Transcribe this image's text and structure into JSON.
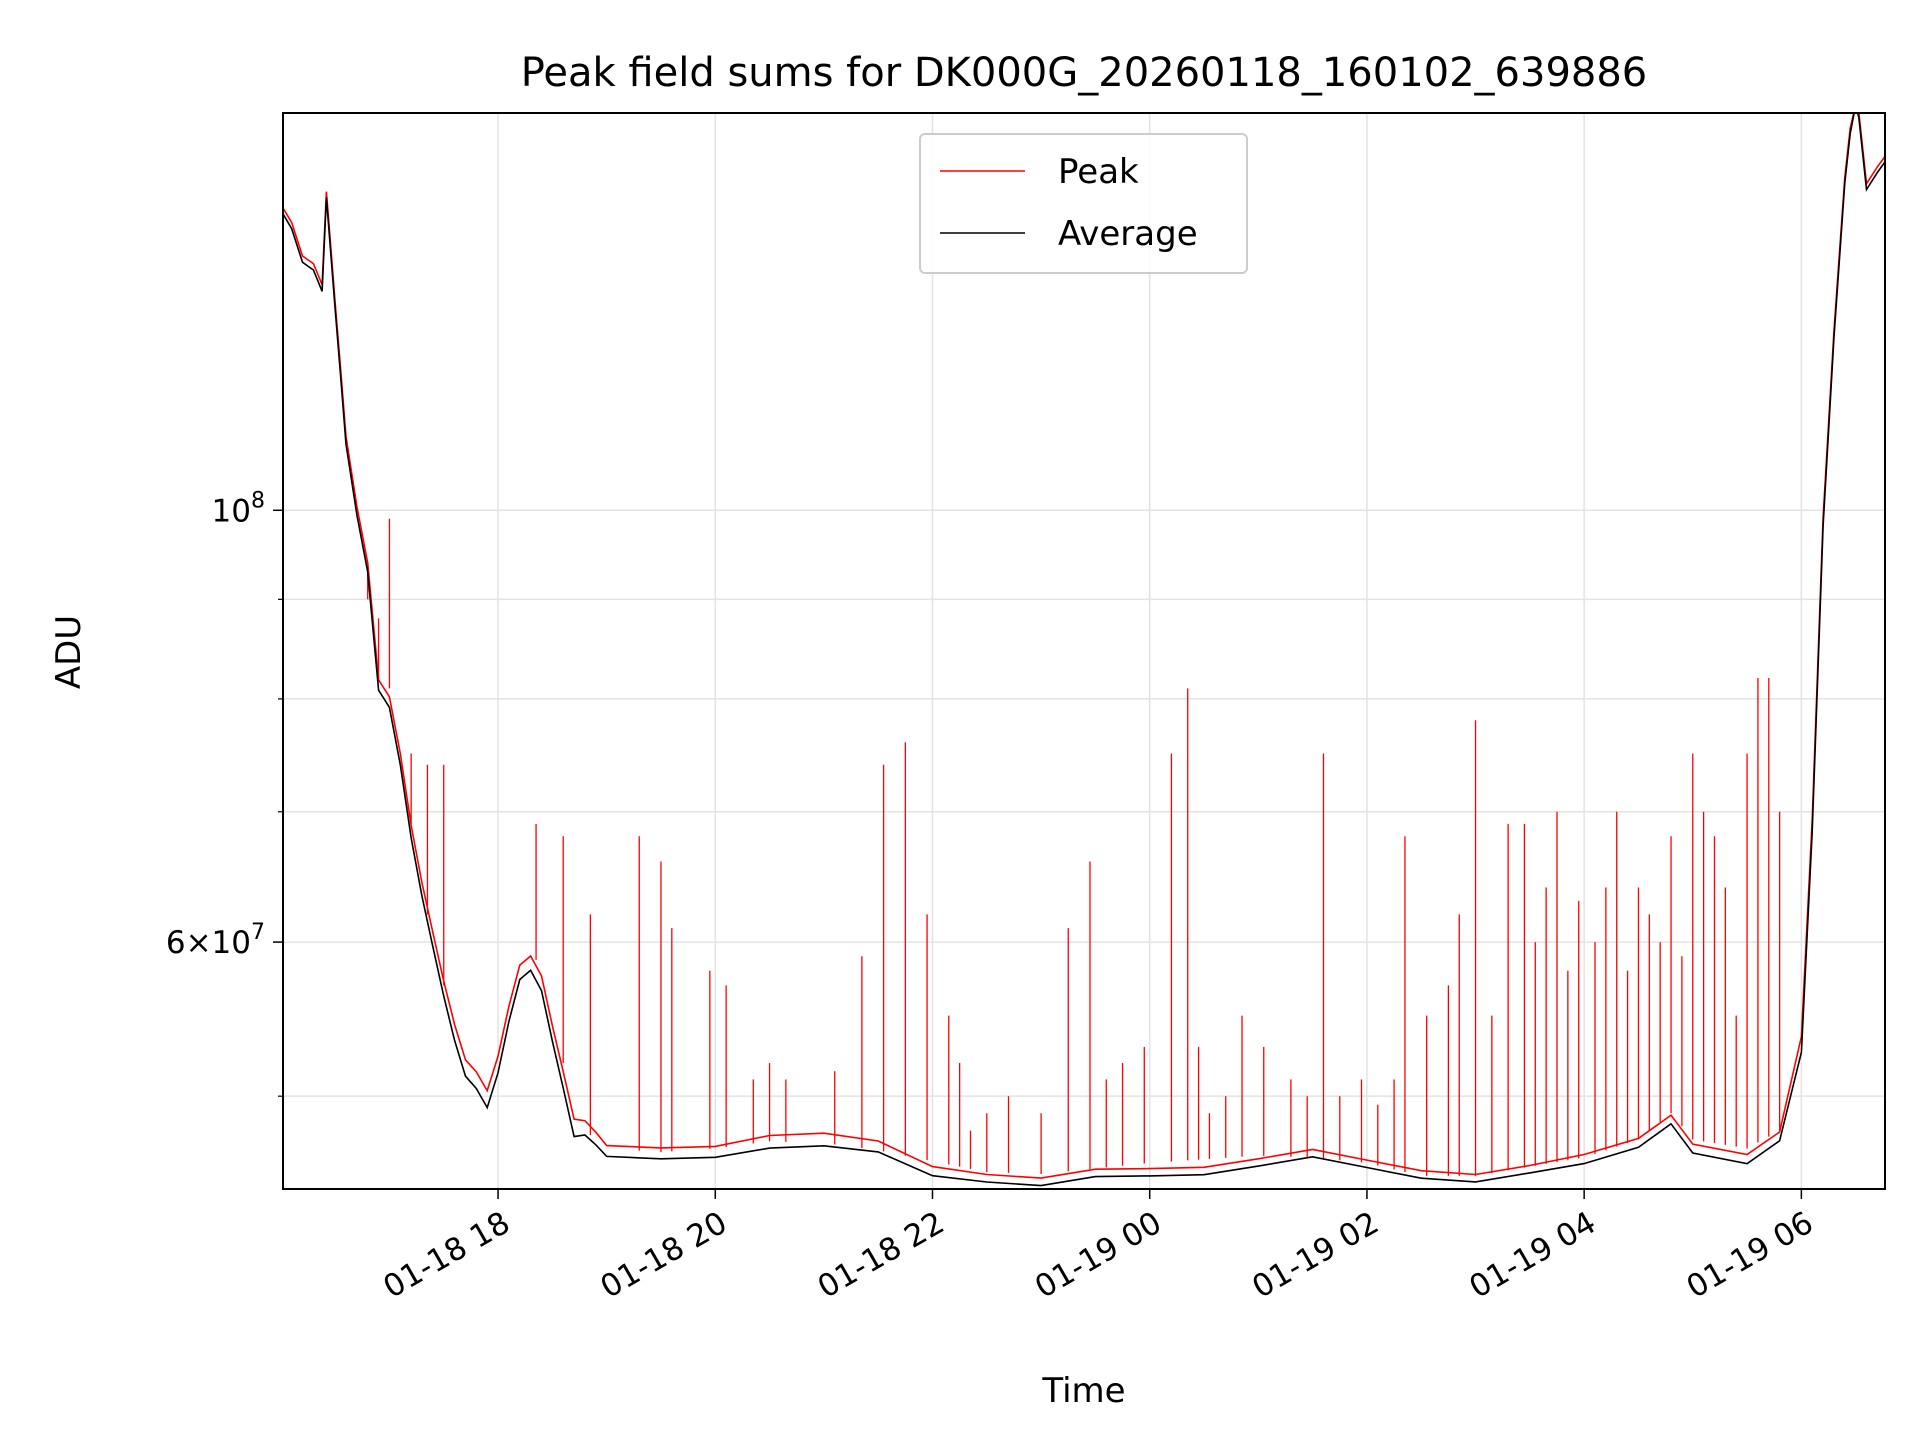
{
  "chart_data": {
    "type": "line",
    "title": "Peak field sums for DK000G_20260118_160102_639886",
    "xlabel": "Time",
    "ylabel": "ADU",
    "yscale": "log",
    "ylim": [
      44800000,
      160000000
    ],
    "x_unit": "hours since 01-18 16:00",
    "xlim": [
      16.02,
      30.77
    ],
    "x_ticks": [
      {
        "value": 18,
        "label": "01-18 18"
      },
      {
        "value": 20,
        "label": "01-18 20"
      },
      {
        "value": 22,
        "label": "01-18 22"
      },
      {
        "value": 24,
        "label": "01-19 00"
      },
      {
        "value": 26,
        "label": "01-19 02"
      },
      {
        "value": 28,
        "label": "01-19 04"
      },
      {
        "value": 30,
        "label": "01-19 06"
      }
    ],
    "y_ticks": [
      {
        "value": 100000000,
        "label": "10^8",
        "mantissa": "10",
        "exp": "8"
      },
      {
        "value": 60000000,
        "label": "6×10^7",
        "mantissa": "6×10",
        "exp": "7"
      }
    ],
    "y_minor_grid": [
      50000000,
      70000000,
      80000000,
      90000000
    ],
    "grid": true,
    "legend": {
      "location": "upper-center",
      "entries": [
        "Peak",
        "Average"
      ]
    },
    "series": [
      {
        "name": "Peak",
        "color": "#ff0000",
        "x": [
          16.02,
          16.1,
          16.2,
          16.3,
          16.38,
          16.42,
          16.5,
          16.55,
          16.6,
          16.7,
          16.8,
          16.9,
          17.0,
          17.1,
          17.2,
          17.3,
          17.4,
          17.5,
          17.6,
          17.7,
          17.8,
          17.9,
          18.0,
          18.1,
          18.2,
          18.3,
          18.4,
          18.5,
          18.6,
          18.7,
          18.8,
          18.9,
          19.0,
          19.5,
          20.0,
          20.5,
          21.0,
          21.5,
          22.0,
          22.5,
          23.0,
          23.5,
          24.0,
          24.5,
          25.0,
          25.5,
          26.0,
          26.5,
          27.0,
          27.5,
          28.0,
          28.5,
          28.8,
          29.0,
          29.5,
          29.8,
          30.0,
          30.1,
          30.2,
          30.3,
          30.4,
          30.45,
          30.5,
          30.53,
          30.6,
          30.7,
          30.77
        ],
        "y": [
          143000000,
          139000000,
          135000000,
          133000000,
          130000000,
          145000000,
          127000000,
          118000000,
          110000000,
          101000000,
          94000000,
          82000000,
          81000000,
          75000000,
          69000000,
          64000000,
          60000000,
          57000000,
          54000000,
          52000000,
          51000000,
          50000000,
          52000000,
          56000000,
          59000000,
          59500000,
          58000000,
          55000000,
          52000000,
          49000000,
          48000000,
          47500000,
          47000000,
          46800000,
          47000000,
          47400000,
          47300000,
          46900000,
          46300000,
          45700000,
          45600000,
          45900000,
          46200000,
          46400000,
          46600000,
          46500000,
          46200000,
          45500000,
          45500000,
          46000000,
          46500000,
          47500000,
          49000000,
          47500000,
          47000000,
          48000000,
          54000000,
          70000000,
          100000000,
          125000000,
          148000000,
          157000000,
          160000000,
          160000000,
          147000000,
          150000000,
          152000000
        ]
      },
      {
        "name": "Average",
        "color": "#000000",
        "x": [
          16.02,
          16.1,
          16.2,
          16.3,
          16.38,
          16.42,
          16.5,
          16.55,
          16.6,
          16.7,
          16.8,
          16.9,
          17.0,
          17.1,
          17.2,
          17.3,
          17.4,
          17.5,
          17.6,
          17.7,
          17.8,
          17.9,
          18.0,
          18.1,
          18.2,
          18.3,
          18.4,
          18.5,
          18.6,
          18.7,
          18.8,
          18.9,
          19.0,
          19.5,
          20.0,
          20.5,
          21.0,
          21.5,
          22.0,
          22.5,
          23.0,
          23.5,
          24.0,
          24.5,
          25.0,
          25.5,
          26.0,
          26.5,
          27.0,
          27.5,
          28.0,
          28.5,
          28.8,
          29.0,
          29.5,
          29.8,
          30.0,
          30.1,
          30.2,
          30.3,
          30.4,
          30.45,
          30.5,
          30.53,
          30.6,
          30.7,
          30.77
        ],
        "y": [
          142000000,
          138000000,
          134000000,
          132000000,
          129000000,
          144000000,
          126000000,
          117000000,
          109000000,
          100000000,
          93000000,
          81000000,
          80000000,
          74000000,
          68000000,
          63000000,
          59000000,
          56000000,
          53000000,
          51000000,
          50000000,
          49000000,
          51000000,
          55000000,
          58000000,
          58500000,
          57000000,
          54000000,
          51000000,
          48000000,
          47200000,
          46800000,
          46400000,
          46200000,
          46400000,
          46700000,
          46600000,
          46300000,
          45800000,
          45300000,
          45200000,
          45500000,
          45800000,
          46000000,
          46200000,
          46100000,
          45800000,
          45100000,
          45100000,
          45600000,
          46000000,
          47000000,
          48500000,
          47000000,
          46500000,
          47500000,
          53000000,
          69000000,
          99000000,
          124000000,
          147000000,
          156000000,
          160000000,
          159000000,
          146000000,
          149000000,
          151000000
        ]
      }
    ],
    "spikes": {
      "series": "Peak",
      "x": [
        16.8,
        16.9,
        17.0,
        17.2,
        17.35,
        17.5,
        18.35,
        18.6,
        18.85,
        19.3,
        19.5,
        19.6,
        19.95,
        20.1,
        20.35,
        20.5,
        20.65,
        21.1,
        21.35,
        21.55,
        21.75,
        21.95,
        22.15,
        22.25,
        22.35,
        22.5,
        22.7,
        23.0,
        23.25,
        23.45,
        23.6,
        23.75,
        23.95,
        24.2,
        24.35,
        24.45,
        24.55,
        24.7,
        24.85,
        25.05,
        25.3,
        25.45,
        25.6,
        25.75,
        25.95,
        26.1,
        26.25,
        26.35,
        26.55,
        26.75,
        26.85,
        27.0,
        27.15,
        27.3,
        27.45,
        27.55,
        27.65,
        27.75,
        27.85,
        27.95,
        28.1,
        28.2,
        28.3,
        28.4,
        28.5,
        28.6,
        28.7,
        28.8,
        28.9,
        29.0,
        29.1,
        29.2,
        29.3,
        29.4,
        29.5,
        29.6,
        29.7,
        29.8
      ],
      "y": [
        90000000,
        88000000,
        99000000,
        75000000,
        74000000,
        74000000,
        69000000,
        68000000,
        62000000,
        68000000,
        66000000,
        61000000,
        58000000,
        57000000,
        51000000,
        52000000,
        51000000,
        51500000,
        59000000,
        74000000,
        76000000,
        62000000,
        55000000,
        52000000,
        48000000,
        49000000,
        50000000,
        49000000,
        61000000,
        66000000,
        51000000,
        52000000,
        53000000,
        75000000,
        81000000,
        53000000,
        49000000,
        50000000,
        55000000,
        53000000,
        51000000,
        50000000,
        75000000,
        50000000,
        51000000,
        49500000,
        51000000,
        68000000,
        55000000,
        57000000,
        62000000,
        78000000,
        55000000,
        69000000,
        69000000,
        60000000,
        64000000,
        70000000,
        58000000,
        63000000,
        60000000,
        64000000,
        70000000,
        58000000,
        64000000,
        62000000,
        60000000,
        68000000,
        59000000,
        75000000,
        70000000,
        68000000,
        64000000,
        55000000,
        75000000,
        82000000,
        82000000,
        70000000
      ]
    }
  }
}
